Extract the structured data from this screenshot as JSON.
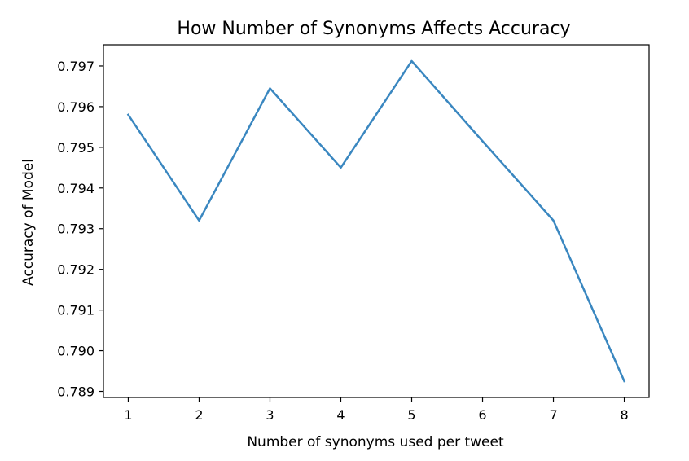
{
  "chart_data": {
    "type": "line",
    "title": "How Number of Synonyms Affects Accuracy",
    "xlabel": "Number of synonyms used per tweet",
    "ylabel": "Accuracy of Model",
    "x": [
      1,
      2,
      3,
      4,
      5,
      6,
      7,
      8
    ],
    "series": [
      {
        "values": [
          0.7958,
          0.7932,
          0.79645,
          0.7945,
          0.79712,
          0.79515,
          0.7932,
          0.78925
        ],
        "color": "#3a87c0"
      }
    ],
    "xlim": [
      0.65,
      8.35
    ],
    "ylim": [
      0.78885,
      0.79752
    ],
    "xticks": [
      "1",
      "2",
      "3",
      "4",
      "5",
      "6",
      "7",
      "8"
    ],
    "yticks": [
      "0.789",
      "0.790",
      "0.791",
      "0.792",
      "0.793",
      "0.794",
      "0.795",
      "0.796",
      "0.797"
    ],
    "grid": false,
    "legend": "none"
  }
}
